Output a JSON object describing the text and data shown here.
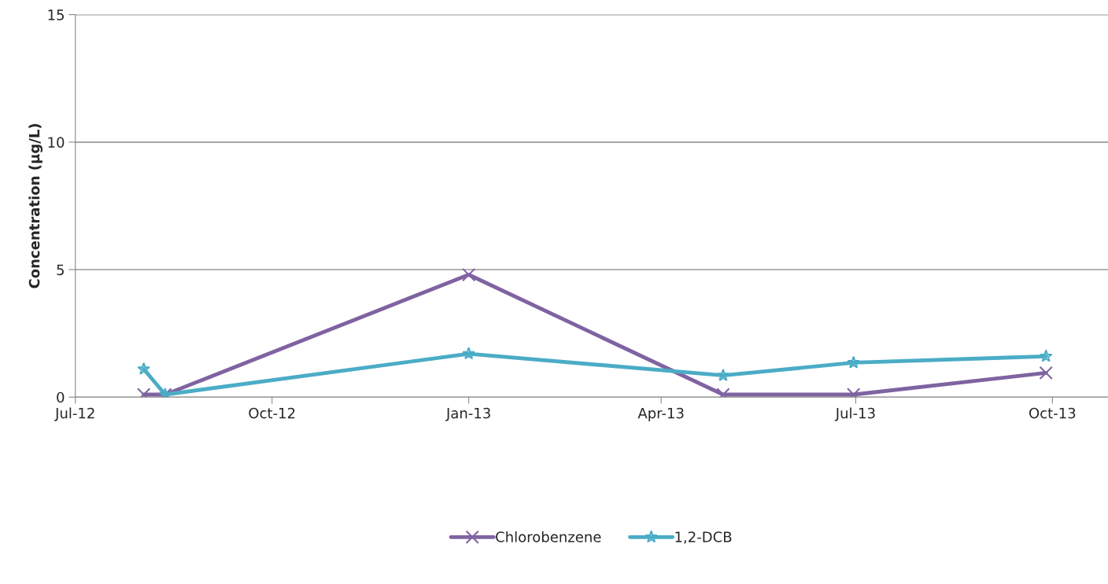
{
  "chart_data": {
    "type": "line",
    "ylabel": "Concentration (µg/L)",
    "x": [
      "2012-08-02",
      "2012-08-12",
      "2013-01-01",
      "2013-04-30",
      "2013-06-30",
      "2013-09-28"
    ],
    "series": [
      {
        "name": "Chlorobenzene",
        "color": "#7f63a1",
        "marker": "cross",
        "values": [
          0.1,
          0.1,
          4.8,
          0.1,
          0.1,
          0.95
        ]
      },
      {
        "name": "1,2-DCB",
        "color": "#4bacc6",
        "marker": "star",
        "values": [
          1.1,
          0.1,
          1.7,
          0.85,
          1.35,
          1.6
        ]
      }
    ],
    "xlim": [
      "2012-07-01",
      "2013-10-27"
    ],
    "xticks": [
      {
        "value": "2012-07-01",
        "label": "Jul-12"
      },
      {
        "value": "2012-10-01",
        "label": "Oct-12"
      },
      {
        "value": "2013-01-01",
        "label": "Jan-13"
      },
      {
        "value": "2013-04-01",
        "label": "Apr-13"
      },
      {
        "value": "2013-07-01",
        "label": "Jul-13"
      },
      {
        "value": "2013-10-01",
        "label": "Oct-13"
      }
    ],
    "ylim": [
      0,
      15
    ],
    "yticks": [
      0,
      5,
      10,
      15
    ],
    "grid": "y",
    "legend": "bottom",
    "line_style": "solid"
  }
}
